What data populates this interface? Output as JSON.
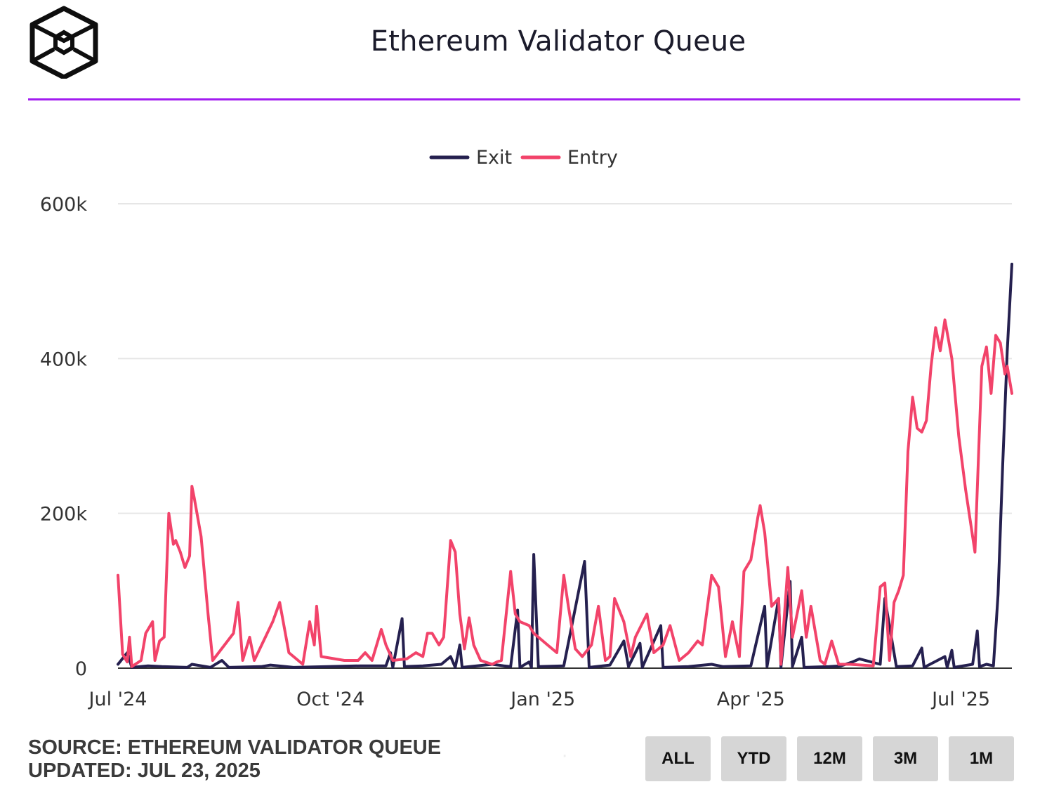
{
  "header": {
    "title": "Ethereum Validator Queue",
    "logo_icon": "cube-logo-icon",
    "accent_color": "#a21cf0"
  },
  "footer": {
    "source": "SOURCE: ETHEREUM VALIDATOR QUEUE",
    "updated": "UPDATED: JUL 23, 2025"
  },
  "range_buttons": [
    "ALL",
    "YTD",
    "12M",
    "3M",
    "1M"
  ],
  "chart_data": {
    "type": "line",
    "title": "Ethereum Validator Queue",
    "xlabel": "",
    "ylabel": "",
    "x_range": [
      "2024-07-01",
      "2025-07-23"
    ],
    "ylim": [
      0,
      600000
    ],
    "y_ticks": [
      0,
      200000,
      400000,
      600000
    ],
    "y_tick_labels": [
      "0",
      "200k",
      "400k",
      "600k"
    ],
    "x_ticks": [
      "2024-07-01",
      "2024-10-01",
      "2025-01-01",
      "2025-04-01",
      "2025-07-01"
    ],
    "x_tick_labels": [
      "Jul '24",
      "Oct '24",
      "Jan '25",
      "Apr '25",
      "Jul '25"
    ],
    "grid": true,
    "legend_position": "top-center",
    "series": [
      {
        "name": "Exit",
        "color": "#25204f",
        "points": [
          [
            "2024-07-01",
            5000
          ],
          [
            "2024-07-05",
            20000
          ],
          [
            "2024-07-07",
            1000
          ],
          [
            "2024-07-14",
            3000
          ],
          [
            "2024-07-20",
            2000
          ],
          [
            "2024-07-31",
            1000
          ],
          [
            "2024-08-02",
            5000
          ],
          [
            "2024-08-10",
            1000
          ],
          [
            "2024-08-15",
            10000
          ],
          [
            "2024-08-18",
            1000
          ],
          [
            "2024-09-01",
            2000
          ],
          [
            "2024-09-05",
            4000
          ],
          [
            "2024-09-15",
            1000
          ],
          [
            "2024-09-30",
            2000
          ],
          [
            "2024-10-14",
            3000
          ],
          [
            "2024-10-25",
            3000
          ],
          [
            "2024-10-27",
            20000
          ],
          [
            "2024-10-28",
            1000
          ],
          [
            "2024-11-01",
            64000
          ],
          [
            "2024-11-02",
            2000
          ],
          [
            "2024-11-10",
            3000
          ],
          [
            "2024-11-18",
            5000
          ],
          [
            "2024-11-22",
            15000
          ],
          [
            "2024-11-24",
            1000
          ],
          [
            "2024-11-26",
            30000
          ],
          [
            "2024-11-27",
            1000
          ],
          [
            "2024-12-10",
            5000
          ],
          [
            "2024-12-15",
            3000
          ],
          [
            "2024-12-18",
            2000
          ],
          [
            "2024-12-21",
            75000
          ],
          [
            "2024-12-22",
            1000
          ],
          [
            "2024-12-26",
            8000
          ],
          [
            "2024-12-27",
            1000
          ],
          [
            "2024-12-28",
            147000
          ],
          [
            "2024-12-30",
            2000
          ],
          [
            "2025-01-10",
            3000
          ],
          [
            "2025-01-19",
            138000
          ],
          [
            "2025-01-21",
            1000
          ],
          [
            "2025-01-30",
            4000
          ],
          [
            "2025-02-05",
            35000
          ],
          [
            "2025-02-07",
            2000
          ],
          [
            "2025-02-12",
            32000
          ],
          [
            "2025-02-13",
            1000
          ],
          [
            "2025-02-21",
            55000
          ],
          [
            "2025-02-22",
            1000
          ],
          [
            "2025-03-05",
            2000
          ],
          [
            "2025-03-15",
            5000
          ],
          [
            "2025-03-20",
            2000
          ],
          [
            "2025-04-01",
            3000
          ],
          [
            "2025-04-07",
            80000
          ],
          [
            "2025-04-08",
            2000
          ],
          [
            "2025-04-13",
            90000
          ],
          [
            "2025-04-14",
            1000
          ],
          [
            "2025-04-18",
            112000
          ],
          [
            "2025-04-19",
            2000
          ],
          [
            "2025-04-23",
            40000
          ],
          [
            "2025-04-24",
            1000
          ],
          [
            "2025-05-05",
            2000
          ],
          [
            "2025-05-10",
            3000
          ],
          [
            "2025-05-15",
            8000
          ],
          [
            "2025-05-18",
            12000
          ],
          [
            "2025-05-27",
            5000
          ],
          [
            "2025-05-29",
            90000
          ],
          [
            "2025-06-03",
            2000
          ],
          [
            "2025-06-10",
            3000
          ],
          [
            "2025-06-14",
            26000
          ],
          [
            "2025-06-15",
            1000
          ],
          [
            "2025-06-24",
            15000
          ],
          [
            "2025-06-25",
            1000
          ],
          [
            "2025-06-27",
            23000
          ],
          [
            "2025-06-28",
            1000
          ],
          [
            "2025-07-06",
            5000
          ],
          [
            "2025-07-08",
            48000
          ],
          [
            "2025-07-09",
            2000
          ],
          [
            "2025-07-12",
            5000
          ],
          [
            "2025-07-15",
            3000
          ],
          [
            "2025-07-17",
            95000
          ],
          [
            "2025-07-19",
            260000
          ],
          [
            "2025-07-21",
            410000
          ],
          [
            "2025-07-23",
            522000
          ]
        ]
      },
      {
        "name": "Entry",
        "color": "#f2436a",
        "points": [
          [
            "2024-07-01",
            120000
          ],
          [
            "2024-07-03",
            18000
          ],
          [
            "2024-07-05",
            8000
          ],
          [
            "2024-07-06",
            40000
          ],
          [
            "2024-07-07",
            2000
          ],
          [
            "2024-07-11",
            10000
          ],
          [
            "2024-07-13",
            45000
          ],
          [
            "2024-07-16",
            60000
          ],
          [
            "2024-07-17",
            10000
          ],
          [
            "2024-07-19",
            35000
          ],
          [
            "2024-07-21",
            40000
          ],
          [
            "2024-07-23",
            200000
          ],
          [
            "2024-07-25",
            160000
          ],
          [
            "2024-07-26",
            165000
          ],
          [
            "2024-07-28",
            150000
          ],
          [
            "2024-07-30",
            130000
          ],
          [
            "2024-08-01",
            145000
          ],
          [
            "2024-08-02",
            235000
          ],
          [
            "2024-08-03",
            220000
          ],
          [
            "2024-08-06",
            170000
          ],
          [
            "2024-08-09",
            70000
          ],
          [
            "2024-08-11",
            10000
          ],
          [
            "2024-08-20",
            45000
          ],
          [
            "2024-08-22",
            85000
          ],
          [
            "2024-08-24",
            10000
          ],
          [
            "2024-08-27",
            40000
          ],
          [
            "2024-08-29",
            10000
          ],
          [
            "2024-09-06",
            60000
          ],
          [
            "2024-09-09",
            85000
          ],
          [
            "2024-09-13",
            20000
          ],
          [
            "2024-09-19",
            5000
          ],
          [
            "2024-09-22",
            60000
          ],
          [
            "2024-09-24",
            30000
          ],
          [
            "2024-09-25",
            80000
          ],
          [
            "2024-09-27",
            15000
          ],
          [
            "2024-10-07",
            10000
          ],
          [
            "2024-10-13",
            10000
          ],
          [
            "2024-10-16",
            20000
          ],
          [
            "2024-10-19",
            10000
          ],
          [
            "2024-10-23",
            50000
          ],
          [
            "2024-10-25",
            30000
          ],
          [
            "2024-10-28",
            10000
          ],
          [
            "2024-11-03",
            12000
          ],
          [
            "2024-11-07",
            20000
          ],
          [
            "2024-11-10",
            15000
          ],
          [
            "2024-11-12",
            45000
          ],
          [
            "2024-11-14",
            45000
          ],
          [
            "2024-11-17",
            30000
          ],
          [
            "2024-11-19",
            40000
          ],
          [
            "2024-11-22",
            165000
          ],
          [
            "2024-11-24",
            150000
          ],
          [
            "2024-11-26",
            70000
          ],
          [
            "2024-11-28",
            25000
          ],
          [
            "2024-11-30",
            65000
          ],
          [
            "2024-12-02",
            30000
          ],
          [
            "2024-12-05",
            10000
          ],
          [
            "2024-12-10",
            5000
          ],
          [
            "2024-12-12",
            8000
          ],
          [
            "2024-12-14",
            10000
          ],
          [
            "2024-12-18",
            125000
          ],
          [
            "2024-12-20",
            70000
          ],
          [
            "2024-12-22",
            60000
          ],
          [
            "2024-12-26",
            55000
          ],
          [
            "2024-12-28",
            45000
          ],
          [
            "2024-12-30",
            40000
          ],
          [
            "2025-01-03",
            30000
          ],
          [
            "2025-01-07",
            20000
          ],
          [
            "2025-01-10",
            120000
          ],
          [
            "2025-01-12",
            80000
          ],
          [
            "2025-01-15",
            25000
          ],
          [
            "2025-01-18",
            15000
          ],
          [
            "2025-01-22",
            30000
          ],
          [
            "2025-01-25",
            80000
          ],
          [
            "2025-01-28",
            10000
          ],
          [
            "2025-01-30",
            15000
          ],
          [
            "2025-02-01",
            90000
          ],
          [
            "2025-02-05",
            60000
          ],
          [
            "2025-02-08",
            15000
          ],
          [
            "2025-02-10",
            40000
          ],
          [
            "2025-02-15",
            70000
          ],
          [
            "2025-02-18",
            20000
          ],
          [
            "2025-02-22",
            30000
          ],
          [
            "2025-02-25",
            55000
          ],
          [
            "2025-03-01",
            10000
          ],
          [
            "2025-03-05",
            20000
          ],
          [
            "2025-03-09",
            35000
          ],
          [
            "2025-03-11",
            30000
          ],
          [
            "2025-03-15",
            120000
          ],
          [
            "2025-03-18",
            105000
          ],
          [
            "2025-03-21",
            15000
          ],
          [
            "2025-03-24",
            60000
          ],
          [
            "2025-03-27",
            15000
          ],
          [
            "2025-03-29",
            125000
          ],
          [
            "2025-04-01",
            140000
          ],
          [
            "2025-04-04",
            195000
          ],
          [
            "2025-04-05",
            210000
          ],
          [
            "2025-04-07",
            175000
          ],
          [
            "2025-04-10",
            80000
          ],
          [
            "2025-04-13",
            90000
          ],
          [
            "2025-04-14",
            5000
          ],
          [
            "2025-04-17",
            130000
          ],
          [
            "2025-04-19",
            40000
          ],
          [
            "2025-04-23",
            100000
          ],
          [
            "2025-04-25",
            40000
          ],
          [
            "2025-04-27",
            80000
          ],
          [
            "2025-05-01",
            10000
          ],
          [
            "2025-05-03",
            5000
          ],
          [
            "2025-05-06",
            35000
          ],
          [
            "2025-05-09",
            5000
          ],
          [
            "2025-05-14",
            5000
          ],
          [
            "2025-05-19",
            4000
          ],
          [
            "2025-05-24",
            3000
          ],
          [
            "2025-05-27",
            105000
          ],
          [
            "2025-05-29",
            110000
          ],
          [
            "2025-05-31",
            10000
          ],
          [
            "2025-06-02",
            85000
          ],
          [
            "2025-06-04",
            100000
          ],
          [
            "2025-06-06",
            120000
          ],
          [
            "2025-06-08",
            280000
          ],
          [
            "2025-06-10",
            350000
          ],
          [
            "2025-06-12",
            310000
          ],
          [
            "2025-06-14",
            305000
          ],
          [
            "2025-06-16",
            320000
          ],
          [
            "2025-06-18",
            390000
          ],
          [
            "2025-06-20",
            440000
          ],
          [
            "2025-06-22",
            410000
          ],
          [
            "2025-06-24",
            450000
          ],
          [
            "2025-06-27",
            400000
          ],
          [
            "2025-06-30",
            300000
          ],
          [
            "2025-07-03",
            230000
          ],
          [
            "2025-07-05",
            190000
          ],
          [
            "2025-07-07",
            150000
          ],
          [
            "2025-07-10",
            390000
          ],
          [
            "2025-07-12",
            415000
          ],
          [
            "2025-07-14",
            355000
          ],
          [
            "2025-07-16",
            430000
          ],
          [
            "2025-07-18",
            420000
          ],
          [
            "2025-07-20",
            380000
          ],
          [
            "2025-07-21",
            390000
          ],
          [
            "2025-07-23",
            355000
          ]
        ]
      }
    ]
  }
}
